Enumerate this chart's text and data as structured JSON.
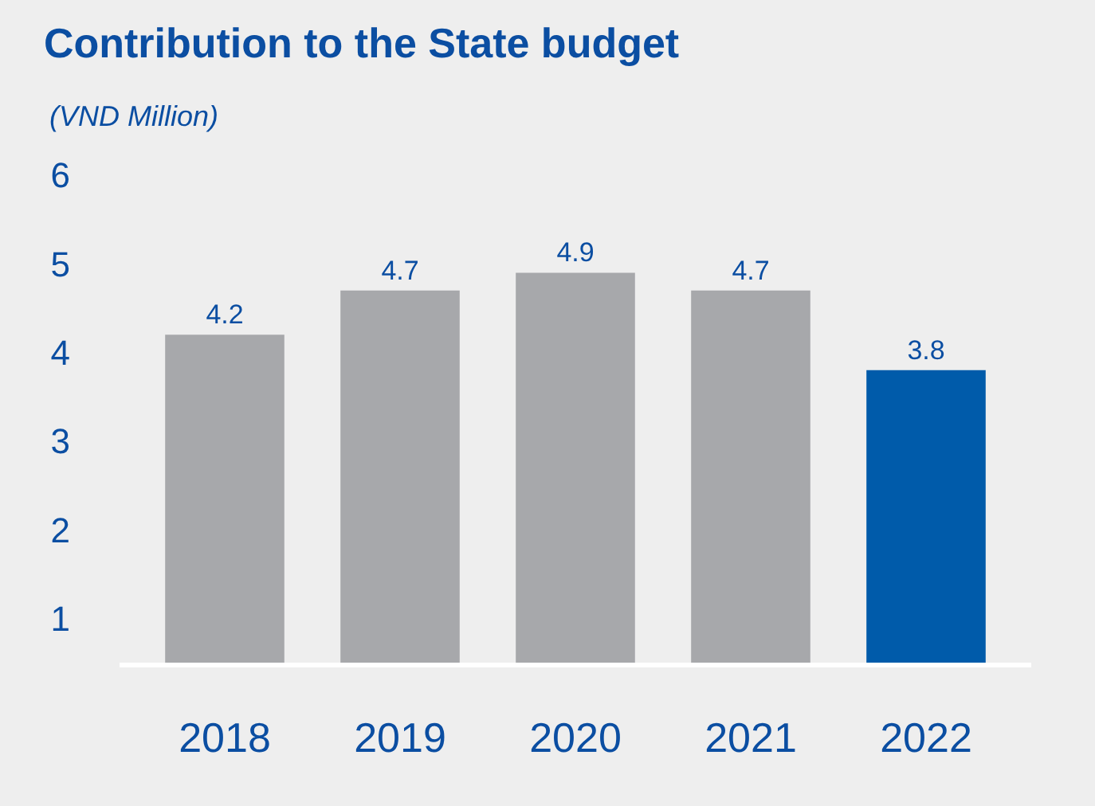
{
  "chart_data": {
    "type": "bar",
    "title": "Contribution to the State budget",
    "subtitle": "(VND Million)",
    "categories": [
      "2018",
      "2019",
      "2020",
      "2021",
      "2022"
    ],
    "values": [
      4.2,
      4.7,
      4.9,
      4.7,
      3.8
    ],
    "colors": [
      "#a7a8ab",
      "#a7a8ab",
      "#a7a8ab",
      "#a7a8ab",
      "#005baa"
    ],
    "data_labels": true,
    "ylim": [
      0.5,
      6
    ],
    "yticks": [
      1,
      2,
      3,
      4,
      5,
      6
    ],
    "grid": false
  }
}
